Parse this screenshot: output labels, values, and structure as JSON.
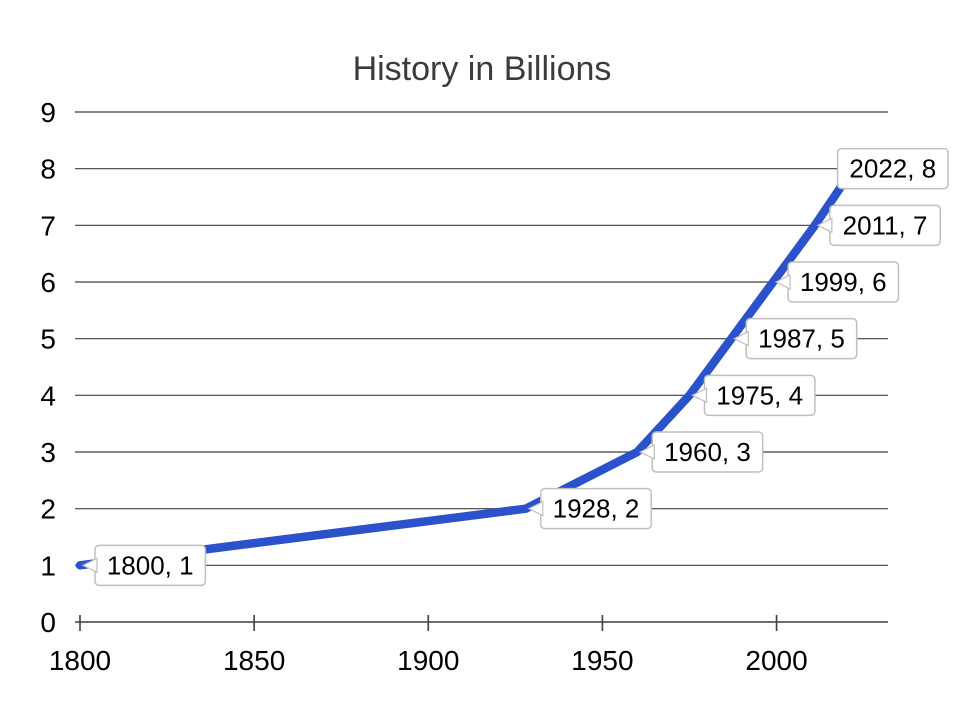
{
  "chart_data": {
    "type": "line",
    "title": "History in Billions",
    "x": [
      1800,
      1928,
      1960,
      1975,
      1987,
      1999,
      2011,
      2022
    ],
    "y": [
      1,
      2,
      3,
      4,
      5,
      6,
      7,
      8
    ],
    "point_labels": [
      "1800, 1",
      "1928, 2",
      "1960, 3",
      "1975, 4",
      "1987, 5",
      "1999, 6",
      "2011, 7",
      "2022, 8"
    ],
    "x_ticks": [
      1800,
      1850,
      1900,
      1950,
      2000
    ],
    "y_ticks": [
      0,
      1,
      2,
      3,
      4,
      5,
      6,
      7,
      8,
      9
    ],
    "xlim": [
      1800,
      2032
    ],
    "ylim": [
      0,
      9
    ],
    "xlabel": "",
    "ylabel": "",
    "grid": "horizontal",
    "legend": "none",
    "colors": {
      "line": "#2b52cb",
      "grid": "#3f3f3f",
      "text": "#000000",
      "title": "#3b3b3b",
      "callout_bg": "#ffffff",
      "callout_border": "#bfbfbf"
    }
  }
}
